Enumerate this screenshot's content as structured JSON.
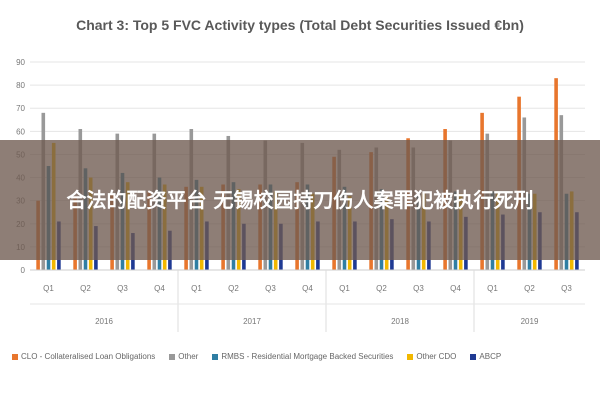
{
  "chart_data": {
    "type": "bar",
    "title": "Chart 3: Top 5 FVC Activity types (Total Debt Securities Issued €bn)",
    "ylim": [
      0,
      90
    ],
    "yticks": [
      0,
      10,
      20,
      30,
      40,
      50,
      60,
      70,
      80,
      90
    ],
    "categories": [
      "Q1",
      "Q2",
      "Q3",
      "Q4",
      "Q1",
      "Q2",
      "Q3",
      "Q4",
      "Q1",
      "Q2",
      "Q3",
      "Q4",
      "Q1",
      "Q2",
      "Q3"
    ],
    "years": [
      {
        "label": "2016",
        "count": 4
      },
      {
        "label": "2017",
        "count": 4
      },
      {
        "label": "2018",
        "count": 4
      },
      {
        "label": "2019",
        "count": 3
      }
    ],
    "series": [
      {
        "name": "CLO - Collateralised Loan Obligations",
        "color": "#e8762d",
        "values": [
          30,
          32,
          33,
          34,
          36,
          37,
          37,
          38,
          49,
          51,
          57,
          61,
          68,
          75,
          83
        ]
      },
      {
        "name": "Other",
        "color": "#999999",
        "values": [
          68,
          61,
          59,
          59,
          61,
          58,
          56,
          55,
          52,
          53,
          53,
          56,
          59,
          66,
          67
        ]
      },
      {
        "name": "RMBS - Residential Mortgage Backed Securities",
        "color": "#2f7ea3",
        "values": [
          45,
          44,
          42,
          40,
          39,
          38,
          37,
          37,
          36,
          35,
          34,
          34,
          34,
          33,
          33
        ]
      },
      {
        "name": "Other CDO",
        "color": "#f2b800",
        "values": [
          55,
          40,
          38,
          37,
          36,
          35,
          34,
          33,
          32,
          32,
          33,
          33,
          33,
          33,
          34
        ]
      },
      {
        "name": "ABCP",
        "color": "#1f3a93",
        "values": [
          21,
          19,
          16,
          17,
          21,
          20,
          20,
          21,
          21,
          22,
          21,
          23,
          24,
          25,
          25
        ]
      }
    ],
    "legend_position": "bottom",
    "grid": true
  },
  "overlay": {
    "text": "合法的配资平台 无锡校园持刀伤人案罪犯被执行死刑"
  }
}
